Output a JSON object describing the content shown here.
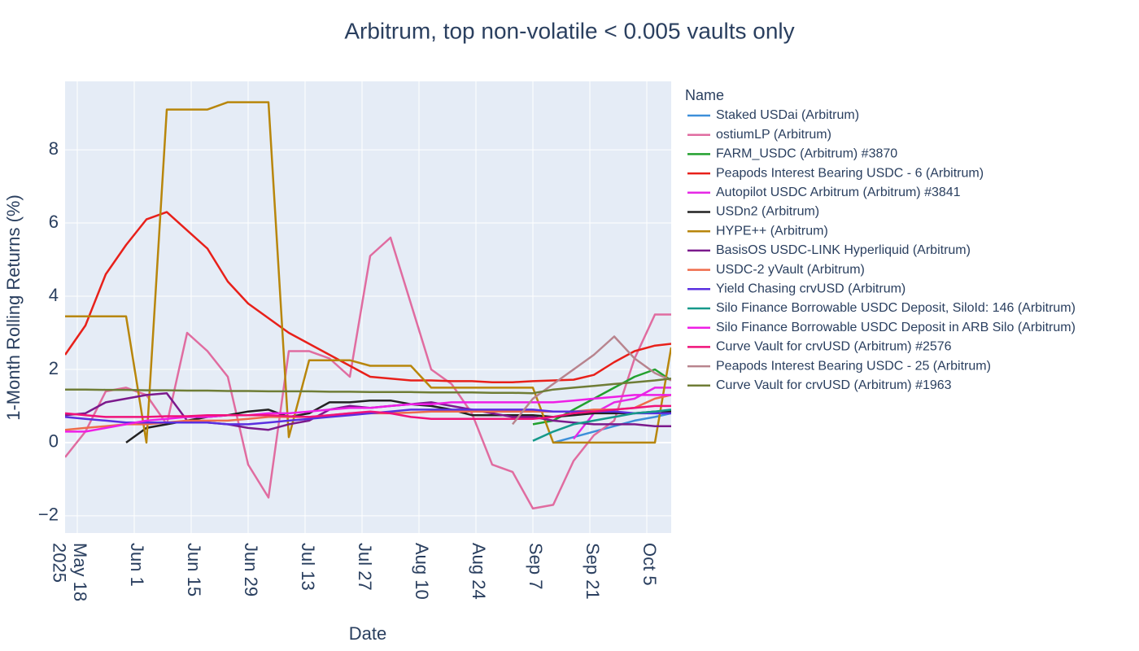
{
  "chart_data": {
    "type": "line",
    "title": "Arbitrum, top non-volatile < 0.005 vaults only",
    "x_label": "Date",
    "y_label": "1-Month Rolling Returns (%)",
    "legend_title": "Name",
    "grid": true,
    "xlim": [
      "2025-05-15",
      "2025-10-11"
    ],
    "ylim": [
      -2.47,
      9.87
    ],
    "yticks": [
      {
        "value": -2,
        "label": "−2"
      },
      0,
      2,
      4,
      6,
      8
    ],
    "xticks": [
      {
        "value": "2025-05-18",
        "label": "May 18\n2025"
      },
      {
        "value": "2025-06-01",
        "label": "Jun 1"
      },
      {
        "value": "2025-06-15",
        "label": "Jun 15"
      },
      {
        "value": "2025-06-29",
        "label": "Jun 29"
      },
      {
        "value": "2025-07-13",
        "label": "Jul 13"
      },
      {
        "value": "2025-07-27",
        "label": "Jul 27"
      },
      {
        "value": "2025-08-10",
        "label": "Aug 10"
      },
      {
        "value": "2025-08-24",
        "label": "Aug 24"
      },
      {
        "value": "2025-09-07",
        "label": "Sep 7"
      },
      {
        "value": "2025-09-21",
        "label": "Sep 21"
      },
      {
        "value": "2025-10-05",
        "label": "Oct 5"
      }
    ],
    "x": [
      "2025-05-15",
      "2025-05-20",
      "2025-05-25",
      "2025-05-30",
      "2025-06-04",
      "2025-06-09",
      "2025-06-14",
      "2025-06-19",
      "2025-06-24",
      "2025-06-29",
      "2025-07-04",
      "2025-07-09",
      "2025-07-14",
      "2025-07-19",
      "2025-07-24",
      "2025-07-29",
      "2025-08-03",
      "2025-08-08",
      "2025-08-13",
      "2025-08-18",
      "2025-08-23",
      "2025-08-28",
      "2025-09-02",
      "2025-09-07",
      "2025-09-12",
      "2025-09-17",
      "2025-09-22",
      "2025-09-27",
      "2025-10-02",
      "2025-10-07",
      "2025-10-11"
    ],
    "series": [
      {
        "name": "Staked USDai (Arbitrum)",
        "color": "#3d8fd9",
        "values": [
          null,
          null,
          null,
          null,
          null,
          null,
          null,
          null,
          null,
          null,
          null,
          null,
          null,
          null,
          null,
          null,
          null,
          null,
          null,
          null,
          null,
          null,
          null,
          null,
          0,
          0.15,
          0.3,
          0.45,
          0.6,
          0.7,
          0.8
        ]
      },
      {
        "name": "ostiumLP (Arbitrum)",
        "color": "#e06ca0",
        "values": [
          -0.4,
          0.3,
          1.4,
          1.5,
          1.3,
          0.5,
          3.0,
          2.5,
          1.8,
          -0.6,
          -1.5,
          2.5,
          2.5,
          2.3,
          1.8,
          5.1,
          5.6,
          3.8,
          2.0,
          1.6,
          0.8,
          -0.6,
          -0.8,
          -1.8,
          -1.7,
          -0.5,
          0.2,
          0.6,
          2.3,
          3.5,
          3.5
        ]
      },
      {
        "name": "FARM_USDC (Arbitrum) #3870",
        "color": "#22a02e",
        "values": [
          null,
          null,
          null,
          null,
          null,
          null,
          null,
          null,
          null,
          null,
          null,
          null,
          null,
          null,
          null,
          null,
          null,
          null,
          null,
          null,
          null,
          null,
          null,
          0.5,
          0.6,
          0.9,
          1.2,
          1.5,
          1.8,
          2.0,
          1.7
        ]
      },
      {
        "name": "Peapods Interest Bearing USDC - 6 (Arbitrum)",
        "color": "#e8201a",
        "values": [
          2.4,
          3.2,
          4.6,
          5.4,
          6.1,
          6.3,
          5.8,
          5.3,
          4.4,
          3.8,
          3.4,
          3.0,
          2.7,
          2.4,
          2.1,
          1.8,
          1.75,
          1.7,
          1.7,
          1.68,
          1.68,
          1.65,
          1.65,
          1.68,
          1.7,
          1.72,
          1.85,
          2.2,
          2.5,
          2.65,
          2.7
        ]
      },
      {
        "name": "Autopilot USDC Arbitrum (Arbitrum) #3841",
        "color": "#e628e6",
        "values": [
          null,
          null,
          null,
          null,
          null,
          null,
          null,
          null,
          null,
          null,
          null,
          null,
          null,
          null,
          null,
          null,
          null,
          null,
          null,
          null,
          null,
          null,
          null,
          null,
          null,
          0.1,
          0.8,
          1.1,
          1.2,
          1.5,
          1.5
        ]
      },
      {
        "name": "USDn2 (Arbitrum)",
        "color": "#222222",
        "values": [
          null,
          null,
          null,
          0,
          0.4,
          0.5,
          0.6,
          0.7,
          0.75,
          0.85,
          0.9,
          0.7,
          0.8,
          1.1,
          1.1,
          1.15,
          1.15,
          1.05,
          1.0,
          0.9,
          0.75,
          0.75,
          0.75,
          0.75,
          0.7,
          0.75,
          0.8,
          0.8,
          0.8,
          0.85,
          0.85
        ]
      },
      {
        "name": "HYPE++ (Arbitrum)",
        "color": "#b8860b",
        "values": [
          3.45,
          3.45,
          3.45,
          3.45,
          0,
          9.1,
          9.1,
          9.1,
          9.3,
          9.3,
          9.3,
          0.15,
          2.25,
          2.25,
          2.25,
          2.1,
          2.1,
          2.1,
          1.5,
          1.5,
          1.5,
          1.5,
          1.5,
          1.5,
          0,
          0,
          0,
          0,
          0,
          0,
          2.6
        ]
      },
      {
        "name": "BasisOS USDC-LINK Hyperliquid (Arbitrum)",
        "color": "#7b1a8c",
        "values": [
          0.75,
          0.8,
          1.1,
          1.2,
          1.3,
          1.35,
          0.6,
          0.55,
          0.5,
          0.4,
          0.35,
          0.5,
          0.6,
          0.9,
          1.0,
          0.95,
          1.0,
          1.05,
          1.1,
          1.0,
          0.9,
          0.8,
          0.7,
          0.7,
          0.6,
          0.55,
          0.5,
          0.5,
          0.5,
          0.45,
          0.45
        ]
      },
      {
        "name": "USDC-2 yVault (Arbitrum)",
        "color": "#ef6b4b",
        "values": [
          0.35,
          0.4,
          0.45,
          0.5,
          0.5,
          0.55,
          0.6,
          0.6,
          0.6,
          0.65,
          0.7,
          0.7,
          0.7,
          0.75,
          0.8,
          0.8,
          0.8,
          0.82,
          0.85,
          0.85,
          0.85,
          0.85,
          0.85,
          0.85,
          0.85,
          0.85,
          0.9,
          0.9,
          0.95,
          1.2,
          1.3
        ]
      },
      {
        "name": "Yield Chasing crvUSD (Arbitrum)",
        "color": "#5a2fe0",
        "values": [
          0.7,
          0.65,
          0.6,
          0.55,
          0.55,
          0.55,
          0.55,
          0.55,
          0.5,
          0.5,
          0.55,
          0.6,
          0.65,
          0.7,
          0.75,
          0.8,
          0.85,
          0.9,
          0.9,
          0.9,
          0.9,
          0.9,
          0.9,
          0.9,
          0.85,
          0.85,
          0.85,
          0.85,
          0.8,
          0.8,
          0.8
        ]
      },
      {
        "name": "Silo Finance Borrowable USDC Deposit, SiloId: 146 (Arbitrum)",
        "color": "#16998a",
        "values": [
          null,
          null,
          null,
          null,
          null,
          null,
          null,
          null,
          null,
          null,
          null,
          null,
          null,
          null,
          null,
          null,
          null,
          null,
          null,
          null,
          null,
          null,
          null,
          0.05,
          0.3,
          0.5,
          0.6,
          0.7,
          0.8,
          0.85,
          0.9
        ]
      },
      {
        "name": "Silo Finance Borrowable USDC Deposit in ARB Silo (Arbitrum)",
        "color": "#ee1ee6",
        "values": [
          0.3,
          0.3,
          0.4,
          0.5,
          0.6,
          0.65,
          0.7,
          0.7,
          0.75,
          0.75,
          0.8,
          0.8,
          0.85,
          0.9,
          0.95,
          0.95,
          1.0,
          1.05,
          1.05,
          1.1,
          1.1,
          1.1,
          1.1,
          1.1,
          1.1,
          1.15,
          1.2,
          1.25,
          1.3,
          1.3,
          1.3
        ]
      },
      {
        "name": "Curve Vault for crvUSD (Arbitrum) #2576",
        "color": "#f0127a",
        "values": [
          0.8,
          0.75,
          0.7,
          0.7,
          0.7,
          0.72,
          0.72,
          0.75,
          0.75,
          0.75,
          0.75,
          0.72,
          0.7,
          0.75,
          0.8,
          0.85,
          0.8,
          0.7,
          0.65,
          0.65,
          0.65,
          0.65,
          0.65,
          0.65,
          0.7,
          0.8,
          0.85,
          0.9,
          0.95,
          1.0,
          1.0
        ]
      },
      {
        "name": "Peapods Interest Bearing USDC - 25 (Arbitrum)",
        "color": "#b8848e",
        "values": [
          null,
          null,
          null,
          null,
          null,
          null,
          null,
          null,
          null,
          null,
          null,
          null,
          null,
          null,
          null,
          null,
          null,
          null,
          null,
          null,
          null,
          null,
          0.5,
          1.2,
          1.6,
          2.0,
          2.4,
          2.9,
          2.3,
          1.9,
          1.7
        ]
      },
      {
        "name": "Curve Vault for crvUSD (Arbitrum) #1963",
        "color": "#6f7d36",
        "values": [
          1.45,
          1.45,
          1.44,
          1.44,
          1.43,
          1.43,
          1.42,
          1.42,
          1.41,
          1.41,
          1.4,
          1.4,
          1.4,
          1.39,
          1.39,
          1.38,
          1.38,
          1.38,
          1.37,
          1.37,
          1.37,
          1.36,
          1.36,
          1.35,
          1.45,
          1.5,
          1.55,
          1.6,
          1.65,
          1.7,
          1.75
        ]
      }
    ]
  }
}
